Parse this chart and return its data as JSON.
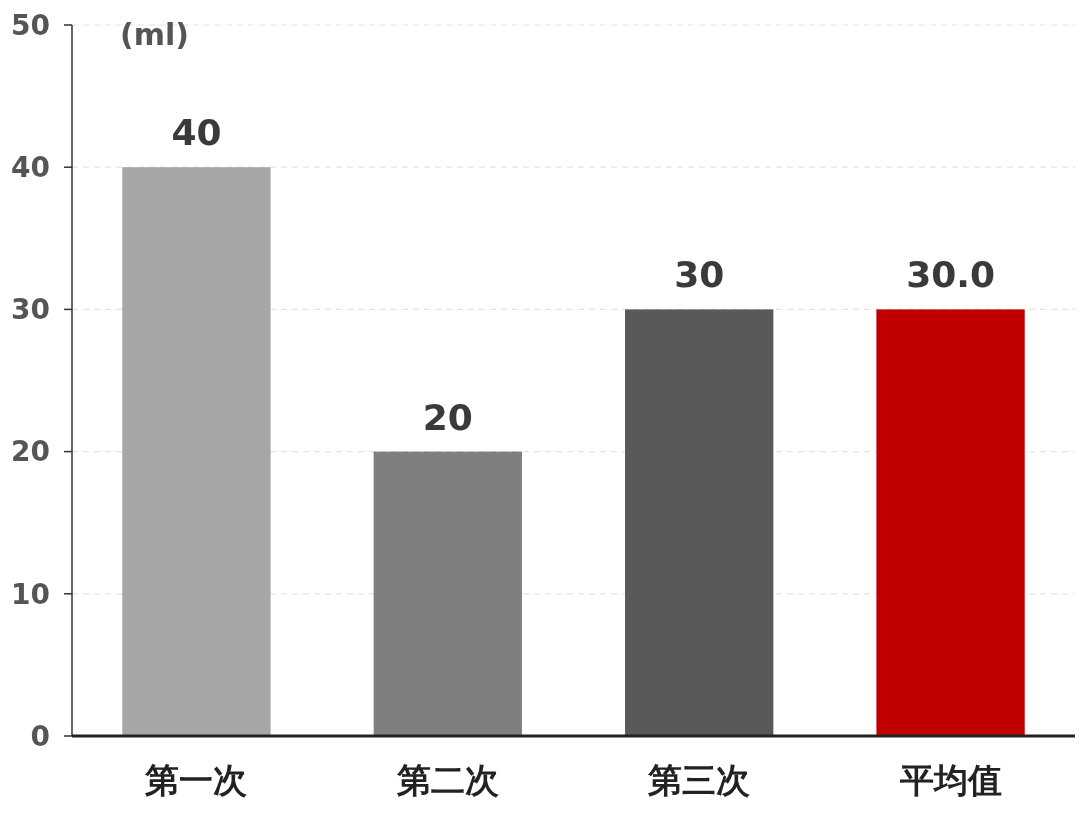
{
  "chart_data": {
    "type": "bar",
    "ylabel": "(ml)",
    "categories": [
      "第一次",
      "第二次",
      "第三次",
      "平均值"
    ],
    "values": [
      40,
      20,
      30,
      30
    ],
    "colors": [
      "#a6a6a6",
      "#7f7f7f",
      "#595959",
      "#c00000"
    ],
    "value_labels": [
      "40",
      "20",
      "30",
      "30.0"
    ],
    "ylim": [
      0,
      50
    ],
    "yticks": [
      0,
      10,
      20,
      30,
      40,
      50
    ],
    "grid": "y"
  }
}
